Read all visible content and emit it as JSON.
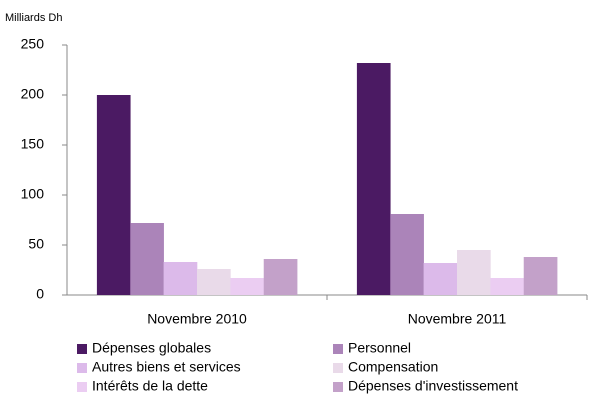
{
  "chart_data": {
    "type": "bar",
    "y_label": "Milliards Dh",
    "categories": [
      "Novembre 2010",
      "Novembre 2011"
    ],
    "series": [
      {
        "name": "Dépenses globales",
        "color": "#4b1a63",
        "values": [
          200,
          232
        ]
      },
      {
        "name": "Personnel",
        "color": "#ab84b9",
        "values": [
          72,
          81
        ]
      },
      {
        "name": "Autres biens et services",
        "color": "#dcbaea",
        "values": [
          33,
          32
        ]
      },
      {
        "name": "Compensation",
        "color": "#e9dae9",
        "values": [
          26,
          45
        ]
      },
      {
        "name": "Intérêts de la dette",
        "color": "#ebcdf2",
        "values": [
          17,
          17
        ]
      },
      {
        "name": "Dépenses d'investissement",
        "color": "#c3a1c9",
        "values": [
          36,
          38
        ]
      }
    ],
    "ylim": [
      0,
      250
    ],
    "yticks": [
      0,
      50,
      100,
      150,
      200,
      250
    ],
    "grid": false
  }
}
